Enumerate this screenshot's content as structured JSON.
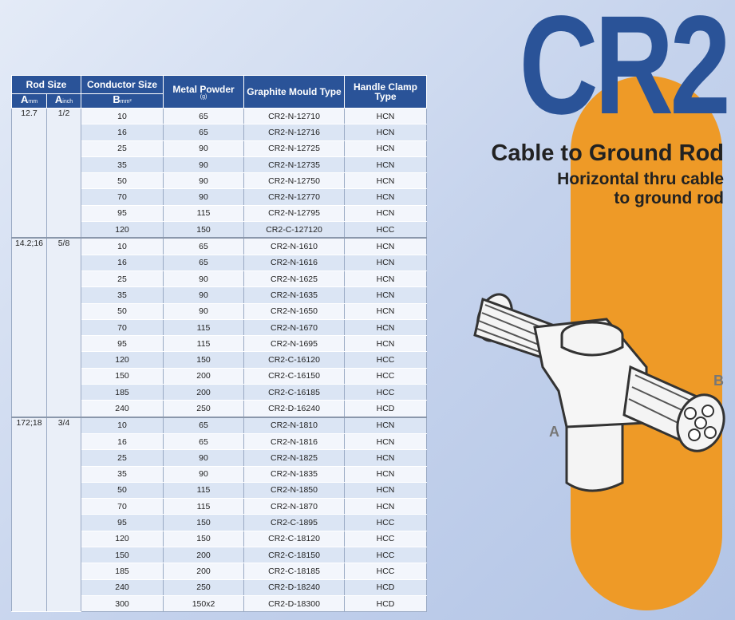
{
  "title": "CR2",
  "headline": "Cable to Ground Rod",
  "subline": [
    "Horizontal thru cable",
    "to ground rod"
  ],
  "labels": {
    "a": "A",
    "b": "B"
  },
  "colors": {
    "brand_blue": "#2a5398",
    "orange": "#ee9a27",
    "background": "#c4d2ec"
  },
  "table": {
    "header": {
      "rod_size": "Rod Size",
      "conductor_size": "Conductor Size",
      "metal_powder": "Metal Powder",
      "metal_powder_unit": "(g)",
      "graphite_mould": "Graphite Mould Type",
      "handle_clamp": "Handle Clamp Type",
      "a_letter": "A",
      "mm": "mm",
      "inch": "inch",
      "b_letter": "B",
      "mm2": "mm²"
    },
    "groups": [
      {
        "rod_mm": "12.7",
        "rod_inch": "1/2",
        "rows": [
          [
            "10",
            "65",
            "CR2-N-12710",
            "HCN"
          ],
          [
            "16",
            "65",
            "CR2-N-12716",
            "HCN"
          ],
          [
            "25",
            "90",
            "CR2-N-12725",
            "HCN"
          ],
          [
            "35",
            "90",
            "CR2-N-12735",
            "HCN"
          ],
          [
            "50",
            "90",
            "CR2-N-12750",
            "HCN"
          ],
          [
            "70",
            "90",
            "CR2-N-12770",
            "HCN"
          ],
          [
            "95",
            "115",
            "CR2-N-12795",
            "HCN"
          ],
          [
            "120",
            "150",
            "CR2-C-127120",
            "HCC"
          ]
        ]
      },
      {
        "rod_mm": "14.2;16",
        "rod_inch": "5/8",
        "rows": [
          [
            "10",
            "65",
            "CR2-N-1610",
            "HCN"
          ],
          [
            "16",
            "65",
            "CR2-N-1616",
            "HCN"
          ],
          [
            "25",
            "90",
            "CR2-N-1625",
            "HCN"
          ],
          [
            "35",
            "90",
            "CR2-N-1635",
            "HCN"
          ],
          [
            "50",
            "90",
            "CR2-N-1650",
            "HCN"
          ],
          [
            "70",
            "115",
            "CR2-N-1670",
            "HCN"
          ],
          [
            "95",
            "115",
            "CR2-N-1695",
            "HCN"
          ],
          [
            "120",
            "150",
            "CR2-C-16120",
            "HCC"
          ],
          [
            "150",
            "200",
            "CR2-C-16150",
            "HCC"
          ],
          [
            "185",
            "200",
            "CR2-C-16185",
            "HCC"
          ],
          [
            "240",
            "250",
            "CR2-D-16240",
            "HCD"
          ]
        ]
      },
      {
        "rod_mm": "172;18",
        "rod_inch": "3/4",
        "rows": [
          [
            "10",
            "65",
            "CR2-N-1810",
            "HCN"
          ],
          [
            "16",
            "65",
            "CR2-N-1816",
            "HCN"
          ],
          [
            "25",
            "90",
            "CR2-N-1825",
            "HCN"
          ],
          [
            "35",
            "90",
            "CR2-N-1835",
            "HCN"
          ],
          [
            "50",
            "115",
            "CR2-N-1850",
            "HCN"
          ],
          [
            "70",
            "115",
            "CR2-N-1870",
            "HCN"
          ],
          [
            "95",
            "150",
            "CR2-C-1895",
            "HCC"
          ],
          [
            "120",
            "150",
            "CR2-C-18120",
            "HCC"
          ],
          [
            "150",
            "200",
            "CR2-C-18150",
            "HCC"
          ],
          [
            "185",
            "200",
            "CR2-C-18185",
            "HCC"
          ],
          [
            "240",
            "250",
            "CR2-D-18240",
            "HCD"
          ],
          [
            "300",
            "150x2",
            "CR2-D-18300",
            "HCD"
          ]
        ]
      }
    ]
  }
}
